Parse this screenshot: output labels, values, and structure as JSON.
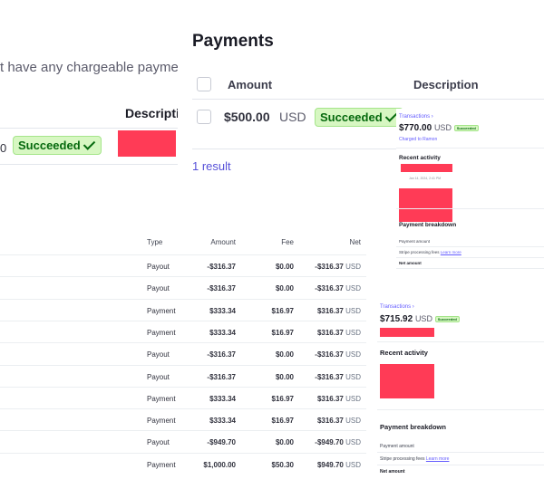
{
  "partial_panel": {
    "message": "t have any chargeable payme",
    "column_description": "Descripti",
    "amount_fragment": "0",
    "status": "Succeeded"
  },
  "payments": {
    "title": "Payments",
    "columns": {
      "amount": "Amount",
      "description": "Description"
    },
    "rows": [
      {
        "amount": "$500.00",
        "currency": "USD",
        "status": "Succeeded"
      }
    ],
    "result_count": "1 result"
  },
  "card_one": {
    "breadcrumb": "Transactions ›",
    "amount": "$770.00",
    "currency": "USD",
    "status": "Succeeded",
    "charged_to": "Charged to Ramon",
    "recent_activity": "Recent activity",
    "activity_date": "Jan 14, 2024, 2:41 PM",
    "breakdown_title": "Payment breakdown",
    "breakdown_payment_amount": "Payment amount",
    "breakdown_fees": "Stripe processing fees",
    "learn_more": "Learn more",
    "breakdown_net": "Net amount"
  },
  "card_two": {
    "breadcrumb": "Transactions ›",
    "amount": "$715.92",
    "currency": "USD",
    "status": "Succeeded",
    "recent_activity": "Recent activity",
    "breakdown_title": "Payment breakdown",
    "breakdown_payment_amount": "Payment amount",
    "breakdown_fees": "Stripe processing fees",
    "learn_more": "Learn more",
    "breakdown_net": "Net amount"
  },
  "balance_table": {
    "headers": {
      "type": "Type",
      "amount": "Amount",
      "fee": "Fee",
      "net": "Net"
    },
    "currency": "USD",
    "rows": [
      {
        "type": "Payout",
        "amount": "-$316.37",
        "fee": "$0.00",
        "net": "-$316.37"
      },
      {
        "type": "Payout",
        "amount": "-$316.37",
        "fee": "$0.00",
        "net": "-$316.37"
      },
      {
        "type": "Payment",
        "amount": "$333.34",
        "fee": "$16.97",
        "net": "$316.37"
      },
      {
        "type": "Payment",
        "amount": "$333.34",
        "fee": "$16.97",
        "net": "$316.37"
      },
      {
        "type": "Payout",
        "amount": "-$316.37",
        "fee": "$0.00",
        "net": "-$316.37"
      },
      {
        "type": "Payout",
        "amount": "-$316.37",
        "fee": "$0.00",
        "net": "-$316.37"
      },
      {
        "type": "Payment",
        "amount": "$333.34",
        "fee": "$16.97",
        "net": "$316.37"
      },
      {
        "type": "Payment",
        "amount": "$333.34",
        "fee": "$16.97",
        "net": "$316.37"
      },
      {
        "type": "Payout",
        "amount": "-$949.70",
        "fee": "$0.00",
        "net": "-$949.70"
      },
      {
        "type": "Payment",
        "amount": "$1,000.00",
        "fee": "$50.30",
        "net": "$949.70"
      }
    ]
  }
}
